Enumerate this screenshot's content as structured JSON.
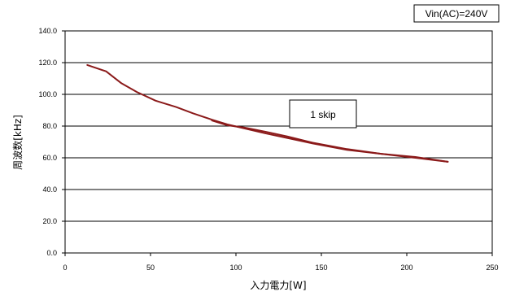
{
  "chart_data": {
    "type": "line",
    "title": "",
    "xlabel": "入力電力[W]",
    "ylabel": "周波数[kHz]",
    "xlim": [
      0,
      250
    ],
    "ylim": [
      0,
      140
    ],
    "x_ticks": [
      0,
      50,
      100,
      150,
      200,
      250
    ],
    "y_ticks": [
      0,
      20,
      40,
      60,
      80,
      100,
      120,
      140
    ],
    "x_tick_labels": [
      "0",
      "50",
      "100",
      "150",
      "200",
      "250"
    ],
    "y_tick_labels": [
      "0.0",
      "20.0",
      "40.0",
      "60.0",
      "80.0",
      "100.0",
      "120.0",
      "140.0"
    ],
    "grid": "horizontal",
    "line_color": "#8b1a1a",
    "annotations": {
      "condition": "Vin(AC)=240V",
      "series_label": "1 skip"
    },
    "series": [
      {
        "x": [
          13,
          24,
          33,
          42,
          53,
          65,
          75,
          86,
          95,
          105,
          117,
          130,
          145,
          165,
          185,
          205,
          224
        ],
        "y": [
          118.5,
          114.5,
          107,
          101.5,
          96,
          92,
          88,
          84,
          81,
          78.5,
          75.5,
          72.5,
          69,
          65,
          62.5,
          60,
          57.5
        ]
      },
      {
        "x": [
          86,
          95,
          105,
          117,
          130,
          145,
          165,
          185,
          205,
          224
        ],
        "y": [
          83.5,
          80.5,
          79,
          76.5,
          73.5,
          69.5,
          65.5,
          62.5,
          60.5,
          57.5
        ]
      }
    ]
  }
}
